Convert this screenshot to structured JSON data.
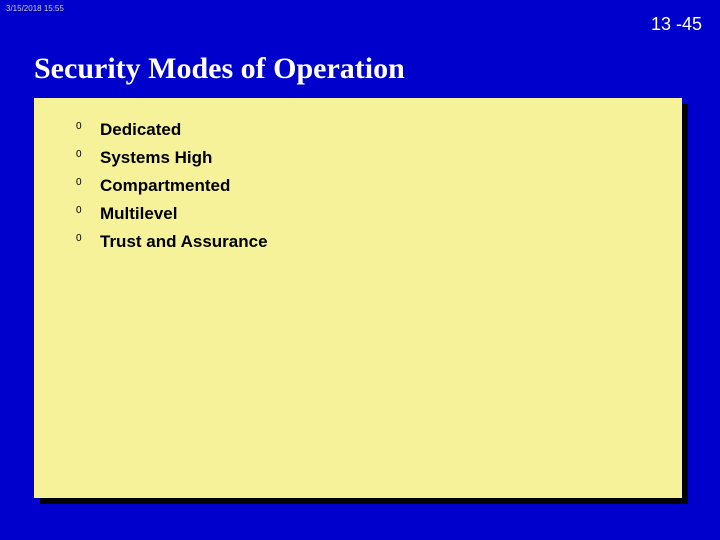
{
  "header": {
    "timestamp": "3/15/2018  15:55",
    "page_number": "13 -45"
  },
  "title": "Security Modes of Operation",
  "bullets": [
    "Dedicated",
    "Systems High",
    "Compartmented",
    "Multilevel",
    "Trust and Assurance"
  ],
  "colors": {
    "slide_bg": "#0000cc",
    "content_bg": "#f5f29a",
    "shadow": "#000000",
    "title_text": "#ffffff",
    "page_text": "#ffffff",
    "body_text": "#000000"
  }
}
